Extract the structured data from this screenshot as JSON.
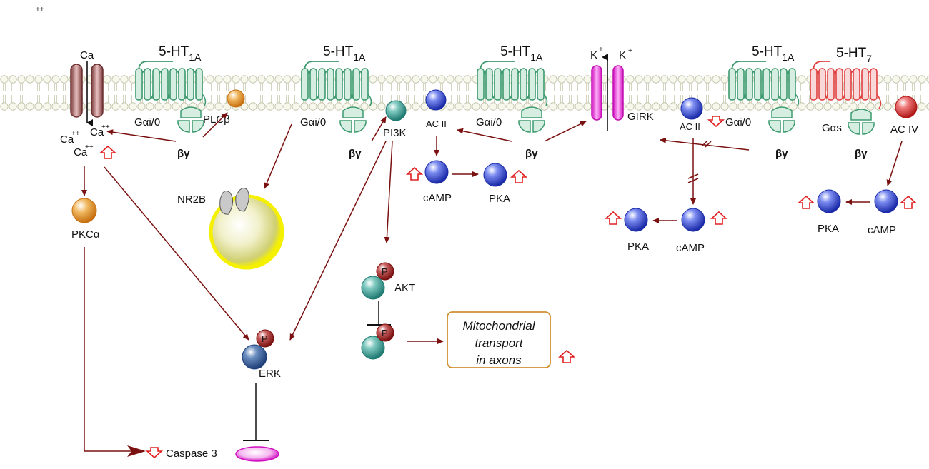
{
  "colors": {
    "membrane": "#c8cbb0",
    "receptor_green": "#3c9a6e",
    "receptor_red": "#e04040",
    "arrow": "#7a1010",
    "blue_ball": "#2233bb",
    "teal_ball": "#2f8f86",
    "orange_ball": "#e0902a",
    "magenta_channel": "#e020d0",
    "up_arrow": "#e02020",
    "box_border": "#d09030"
  },
  "labels": {
    "corner_mark": "++",
    "ca_channel": "Ca",
    "ca_in_1": "Ca",
    "ca_in_1_sup": "++",
    "ca_in_2": "Ca",
    "ca_in_2_sup": "++",
    "ca_in_3": "Ca",
    "ca_in_3_sup": "++",
    "plc": "PLCβ",
    "pkc": "PKCα",
    "nr2b": "NR2B",
    "pi3k": "PI3K",
    "akt": "AKT",
    "p": "P",
    "erk": "ERK",
    "caspase": "Caspase 3",
    "ac_ii": "AC II",
    "ac_iv": "AC IV",
    "camp": "cAMP",
    "pka": "PKA",
    "girk": "GIRK",
    "k": "K",
    "k_sup": "+",
    "gai": "Gαi/0",
    "gas": "Gαs",
    "bg": "βγ",
    "ht_prefix": "5-HT",
    "ht1a_sub": "1A",
    "ht7_sub": "7",
    "mito_line1": "Mitochondrial",
    "mito_line2": "transport",
    "mito_line3": "in axons"
  },
  "icons": [
    "up-arrow-icon",
    "down-arrow-icon",
    "inhibition-bar-icon",
    "phosphate-icon"
  ]
}
